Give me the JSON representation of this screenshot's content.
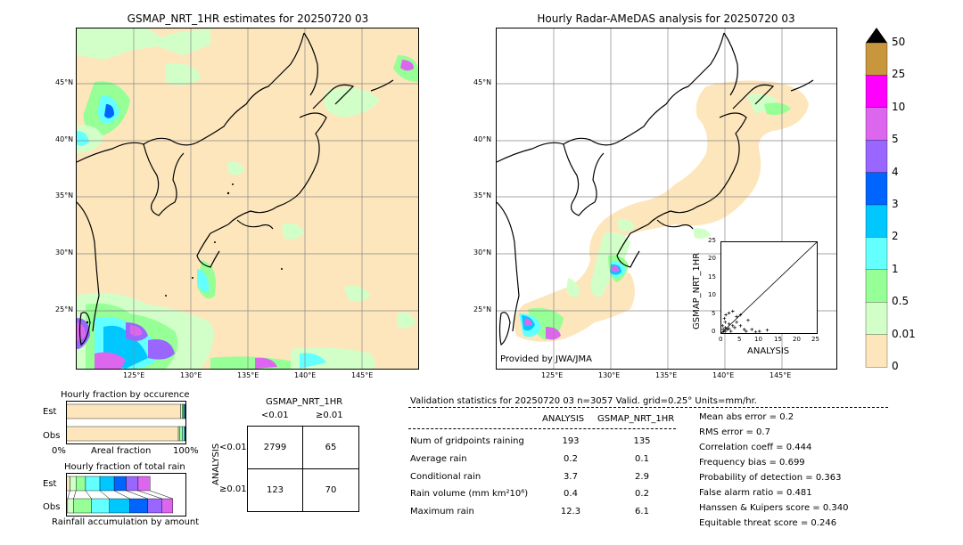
{
  "left_map": {
    "title": "GSMAP_NRT_1HR estimates for 20250720 03",
    "lat_labels": [
      "45°N",
      "40°N",
      "35°N",
      "30°N",
      "25°N"
    ],
    "lon_labels": [
      "125°E",
      "130°E",
      "135°E",
      "140°E",
      "145°E"
    ]
  },
  "right_map": {
    "title": "Hourly Radar-AMeDAS analysis for 20250720 03",
    "lat_labels": [
      "45°N",
      "40°N",
      "35°N",
      "30°N",
      "25°N"
    ],
    "lon_labels": [
      "125°E",
      "130°E",
      "135°E",
      "140°E",
      "145°E"
    ],
    "credit": "Provided by JWA/JMA"
  },
  "scatter": {
    "ylabel": "GSMAP_NRT_1HR",
    "xlabel": "ANALYSIS",
    "ticks": [
      "0",
      "5",
      "10",
      "15",
      "20",
      "25"
    ]
  },
  "colorbar": {
    "labels": [
      "50",
      "25",
      "10",
      "5",
      "4",
      "3",
      "2",
      "1",
      "0.5",
      "0.01",
      "0"
    ],
    "colors": [
      "#c8963c",
      "#ff00ff",
      "#dd66ee",
      "#9966ff",
      "#0064ff",
      "#00c8ff",
      "#64ffff",
      "#96ff96",
      "#d2ffc8",
      "#fde6bc"
    ]
  },
  "fraction_occurrence": {
    "title": "Hourly fraction by occurence",
    "row_est": "Est",
    "row_obs": "Obs",
    "axis_left": "0%",
    "axis_mid": "Areal fraction",
    "axis_right": "100%"
  },
  "fraction_rain": {
    "title": "Hourly fraction of total rain",
    "row_est": "Est",
    "row_obs": "Obs",
    "caption": "Rainfall accumulation by amount"
  },
  "contingency": {
    "col_title": "GSMAP_NRT_1HR",
    "col_lt": "<0.01",
    "col_ge": "≥0.01",
    "row_title": "ANALYSIS",
    "row_lt": "<0.01",
    "row_ge": "≥0.01",
    "cells": [
      [
        "2799",
        "65"
      ],
      [
        "123",
        "70"
      ]
    ]
  },
  "validation": {
    "header": "Validation statistics for 20250720 03  n=3057 Valid. grid=0.25° Units=mm/hr.",
    "col_analysis": "ANALYSIS",
    "col_gsmap": "GSMAP_NRT_1HR",
    "rows": [
      {
        "label": "Num of gridpoints raining",
        "analysis": "193",
        "gsmap": "135"
      },
      {
        "label": "Average rain",
        "analysis": "0.2",
        "gsmap": "0.1"
      },
      {
        "label": "Conditional rain",
        "analysis": "3.7",
        "gsmap": "2.9"
      },
      {
        "label": "Rain volume (mm km²10⁶)",
        "analysis": "0.4",
        "gsmap": "0.2"
      },
      {
        "label": "Maximum rain",
        "analysis": "12.3",
        "gsmap": "6.1"
      }
    ],
    "scores": [
      "Mean abs error =    0.2",
      "RMS error =    0.7",
      "Correlation coeff =  0.444",
      "Frequency bias =  0.699",
      "Probability of detection =  0.363",
      "False alarm ratio =  0.481",
      "Hanssen & Kuipers score =  0.340",
      "Equitable threat score =  0.246"
    ]
  },
  "chart_data": [
    {
      "type": "scatter",
      "xlabel": "ANALYSIS",
      "ylabel": "GSMAP_NRT_1HR",
      "xlim": [
        0,
        25
      ],
      "ylim": [
        0,
        25
      ],
      "points": [
        [
          0.5,
          0.3
        ],
        [
          1,
          0.5
        ],
        [
          1.5,
          1
        ],
        [
          2,
          1.2
        ],
        [
          0.3,
          2
        ],
        [
          1,
          3
        ],
        [
          2.5,
          0.5
        ],
        [
          3,
          2
        ],
        [
          0.8,
          4
        ],
        [
          1.2,
          5
        ],
        [
          2,
          5.5
        ],
        [
          3,
          6
        ],
        [
          4,
          3
        ],
        [
          5,
          2
        ],
        [
          6,
          1
        ],
        [
          6.5,
          0.5
        ],
        [
          7,
          3.5
        ],
        [
          8,
          1
        ],
        [
          9,
          0.3
        ],
        [
          10,
          0.5
        ],
        [
          12,
          0.8
        ],
        [
          4,
          4.5
        ],
        [
          3.5,
          1.5
        ],
        [
          5,
          5
        ],
        [
          2,
          2.5
        ],
        [
          1,
          1.5
        ],
        [
          0.5,
          1
        ]
      ]
    },
    {
      "type": "bar",
      "title": "Hourly fraction by occurence",
      "categories": [
        "Est",
        "Obs"
      ],
      "series": [
        {
          "values": [
            0.956,
            0.937
          ]
        },
        {
          "values": [
            0.012,
            0.012
          ]
        },
        {
          "values": [
            0.012,
            0.022
          ]
        },
        {
          "values": [
            0.008,
            0.018
          ]
        },
        {
          "values": [
            0.005,
            0.005
          ]
        },
        {
          "values": [
            0.004,
            0.003
          ]
        },
        {
          "values": [
            0.002,
            0.002
          ]
        },
        {
          "values": [
            0.001,
            0.001
          ]
        }
      ],
      "ylim": [
        0,
        1
      ]
    },
    {
      "type": "bar",
      "title": "Hourly fraction of total rain",
      "categories": [
        "Est",
        "Obs"
      ],
      "series": [
        {
          "values": [
            0.03,
            0.01
          ]
        },
        {
          "values": [
            0.05,
            0.05
          ]
        },
        {
          "values": [
            0.08,
            0.15
          ]
        },
        {
          "values": [
            0.12,
            0.15
          ]
        },
        {
          "values": [
            0.12,
            0.17
          ]
        },
        {
          "values": [
            0.1,
            0.15
          ]
        },
        {
          "values": [
            0.1,
            0.12
          ]
        },
        {
          "values": [
            0.1,
            0.09
          ]
        }
      ],
      "ylim": [
        0,
        1
      ]
    }
  ]
}
